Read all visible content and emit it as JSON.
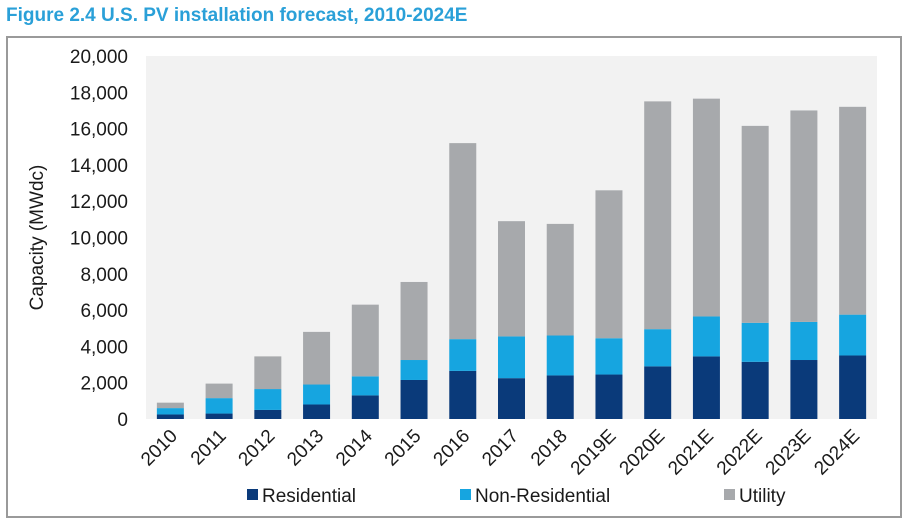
{
  "chart_data": {
    "type": "bar",
    "stacked": true,
    "title": "Figure 2.4 U.S. PV installation forecast, 2010-2024E",
    "xlabel": "",
    "ylabel": "Capacity (MWdc)",
    "ylim": [
      0,
      20000
    ],
    "yticks": [
      "0",
      "2,000",
      "4,000",
      "6,000",
      "8,000",
      "10,000",
      "12,000",
      "14,000",
      "16,000",
      "18,000",
      "20,000"
    ],
    "grid": false,
    "legend_position": "bottom",
    "categories": [
      "2010",
      "2011",
      "2012",
      "2013",
      "2014",
      "2015",
      "2016",
      "2017",
      "2018",
      "2019E",
      "2020E",
      "2021E",
      "2022E",
      "2023E",
      "2024E"
    ],
    "series": [
      {
        "name": "Residential",
        "color": "#0a3a7a",
        "values": [
          250,
          300,
          500,
          800,
          1300,
          2150,
          2650,
          2250,
          2400,
          2450,
          2900,
          3450,
          3150,
          3250,
          3500
        ]
      },
      {
        "name": "Non-Residential",
        "color": "#16a5e0",
        "values": [
          350,
          850,
          1150,
          1100,
          1050,
          1100,
          1750,
          2300,
          2200,
          2000,
          2050,
          2200,
          2150,
          2100,
          2250
        ]
      },
      {
        "name": "Utility",
        "color": "#a7a9ac",
        "values": [
          300,
          800,
          1800,
          2900,
          3950,
          4300,
          10800,
          6350,
          6150,
          8150,
          12550,
          12000,
          10850,
          11650,
          11450
        ]
      }
    ]
  }
}
